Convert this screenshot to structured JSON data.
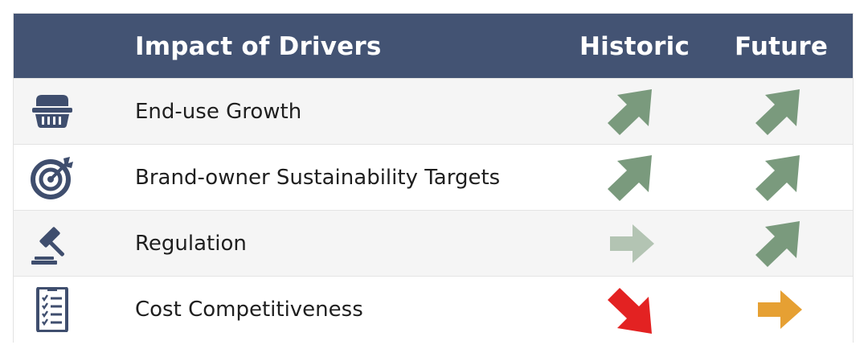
{
  "header": {
    "title": "Impact of Drivers",
    "historic": "Historic",
    "future": "Future"
  },
  "colors": {
    "header_bg": "#435373",
    "icon": "#3f4e6e",
    "arrow_green": "#7a9a7d",
    "arrow_light_green": "#b3c4b3",
    "arrow_red": "#e32222",
    "arrow_orange": "#e6a033"
  },
  "rows": [
    {
      "label": "End-use Growth",
      "icon": "food-container-icon",
      "historic": {
        "direction": "up-right",
        "color": "#7a9a7d"
      },
      "future": {
        "direction": "up-right",
        "color": "#7a9a7d"
      }
    },
    {
      "label": "Brand-owner Sustainability Targets",
      "icon": "target-icon",
      "historic": {
        "direction": "up-right",
        "color": "#7a9a7d"
      },
      "future": {
        "direction": "up-right",
        "color": "#7a9a7d"
      }
    },
    {
      "label": "Regulation",
      "icon": "gavel-icon",
      "historic": {
        "direction": "right",
        "color": "#b3c4b3"
      },
      "future": {
        "direction": "up-right",
        "color": "#7a9a7d"
      }
    },
    {
      "label": "Cost Competitiveness",
      "icon": "checklist-icon",
      "historic": {
        "direction": "down-right",
        "color": "#e32222"
      },
      "future": {
        "direction": "right",
        "color": "#e6a033"
      }
    }
  ]
}
